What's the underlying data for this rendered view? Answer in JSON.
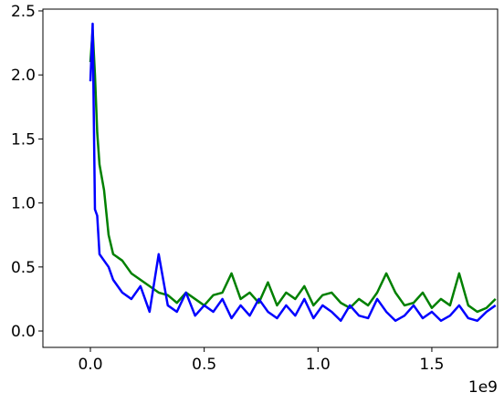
{
  "chart_data": {
    "type": "line",
    "x": [
      0,
      10000000,
      20000000,
      30000000,
      40000000,
      60000000,
      80000000,
      100000000,
      140000000,
      180000000,
      220000000,
      260000000,
      300000000,
      340000000,
      380000000,
      420000000,
      460000000,
      500000000,
      540000000,
      580000000,
      620000000,
      660000000,
      700000000,
      740000000,
      780000000,
      820000000,
      860000000,
      900000000,
      940000000,
      980000000,
      1020000000,
      1060000000,
      1100000000,
      1140000000,
      1180000000,
      1220000000,
      1260000000,
      1300000000,
      1340000000,
      1380000000,
      1420000000,
      1460000000,
      1500000000,
      1540000000,
      1580000000,
      1620000000,
      1660000000,
      1700000000,
      1740000000,
      1780000000
    ],
    "series": [
      {
        "color": "#008000",
        "values": [
          2.1,
          2.35,
          2.0,
          1.55,
          1.3,
          1.1,
          0.75,
          0.6,
          0.55,
          0.45,
          0.4,
          0.35,
          0.3,
          0.28,
          0.22,
          0.3,
          0.25,
          0.2,
          0.28,
          0.3,
          0.45,
          0.25,
          0.3,
          0.22,
          0.38,
          0.2,
          0.3,
          0.25,
          0.35,
          0.2,
          0.28,
          0.3,
          0.22,
          0.18,
          0.25,
          0.2,
          0.3,
          0.45,
          0.3,
          0.2,
          0.22,
          0.3,
          0.18,
          0.25,
          0.2,
          0.45,
          0.2,
          0.15,
          0.18,
          0.25
        ]
      },
      {
        "color": "#0000ff",
        "values": [
          1.95,
          2.4,
          0.95,
          0.9,
          0.6,
          0.55,
          0.5,
          0.4,
          0.3,
          0.25,
          0.35,
          0.15,
          0.6,
          0.2,
          0.15,
          0.3,
          0.12,
          0.2,
          0.15,
          0.25,
          0.1,
          0.2,
          0.12,
          0.25,
          0.15,
          0.1,
          0.2,
          0.12,
          0.25,
          0.1,
          0.2,
          0.15,
          0.08,
          0.2,
          0.12,
          0.1,
          0.25,
          0.15,
          0.08,
          0.12,
          0.2,
          0.1,
          0.15,
          0.08,
          0.12,
          0.2,
          0.1,
          0.08,
          0.15,
          0.2
        ]
      }
    ],
    "xlim": [
      -208600000,
      1789000000
    ],
    "xticks": [
      {
        "value": 0,
        "label": "0.0"
      },
      {
        "value": 500000000,
        "label": "0.5"
      },
      {
        "value": 1000000000,
        "label": "1.0"
      },
      {
        "value": 1500000000,
        "label": "1.5"
      }
    ],
    "x_offset_label": "1e9",
    "ylim": [
      -0.128,
      2.514
    ],
    "yticks": [
      {
        "value": 0,
        "label": "0.0"
      },
      {
        "value": 0.5,
        "label": "0.5"
      },
      {
        "value": 1,
        "label": "1.0"
      },
      {
        "value": 1.5,
        "label": "1.5"
      },
      {
        "value": 2,
        "label": "2.0"
      },
      {
        "value": 2.5,
        "label": "2.5"
      }
    ],
    "grid": false
  }
}
